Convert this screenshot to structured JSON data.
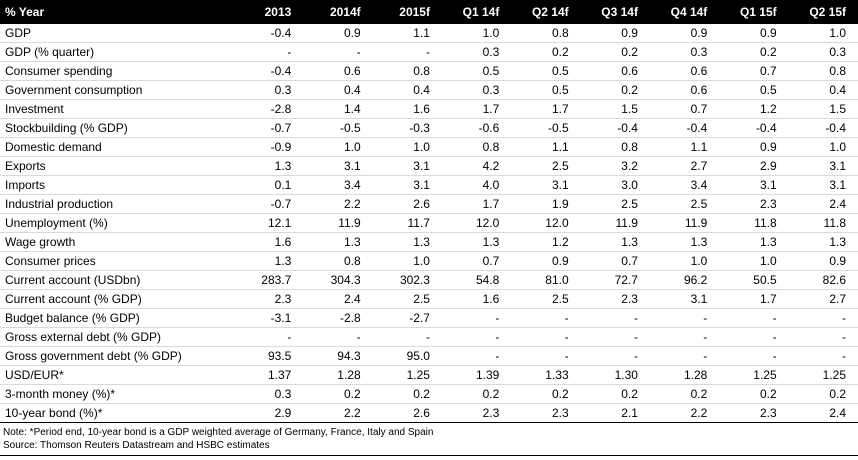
{
  "chart_data": {
    "type": "table",
    "title": "% Year",
    "columns": [
      "2013",
      "2014f",
      "2015f",
      "Q1 14f",
      "Q2 14f",
      "Q3 14f",
      "Q4 14f",
      "Q1 15f",
      "Q2 15f"
    ],
    "rows": [
      {
        "label": "GDP",
        "values": [
          "-0.4",
          "0.9",
          "1.1",
          "1.0",
          "0.8",
          "0.9",
          "0.9",
          "0.9",
          "1.0"
        ]
      },
      {
        "label": "GDP (% quarter)",
        "values": [
          "-",
          "-",
          "-",
          "0.3",
          "0.2",
          "0.2",
          "0.3",
          "0.2",
          "0.3"
        ]
      },
      {
        "label": "Consumer spending",
        "values": [
          "-0.4",
          "0.6",
          "0.8",
          "0.5",
          "0.5",
          "0.6",
          "0.6",
          "0.7",
          "0.8"
        ]
      },
      {
        "label": "Government consumption",
        "values": [
          "0.3",
          "0.4",
          "0.4",
          "0.3",
          "0.5",
          "0.2",
          "0.6",
          "0.5",
          "0.4"
        ]
      },
      {
        "label": "Investment",
        "values": [
          "-2.8",
          "1.4",
          "1.6",
          "1.7",
          "1.7",
          "1.5",
          "0.7",
          "1.2",
          "1.5"
        ]
      },
      {
        "label": "Stockbuilding (% GDP)",
        "values": [
          "-0.7",
          "-0.5",
          "-0.3",
          "-0.6",
          "-0.5",
          "-0.4",
          "-0.4",
          "-0.4",
          "-0.4"
        ]
      },
      {
        "label": "Domestic demand",
        "values": [
          "-0.9",
          "1.0",
          "1.0",
          "0.8",
          "1.1",
          "0.8",
          "1.1",
          "0.9",
          "1.0"
        ]
      },
      {
        "label": "Exports",
        "values": [
          "1.3",
          "3.1",
          "3.1",
          "4.2",
          "2.5",
          "3.2",
          "2.7",
          "2.9",
          "3.1"
        ]
      },
      {
        "label": "Imports",
        "values": [
          "0.1",
          "3.4",
          "3.1",
          "4.0",
          "3.1",
          "3.0",
          "3.4",
          "3.1",
          "3.1"
        ]
      },
      {
        "label": "Industrial production",
        "values": [
          "-0.7",
          "2.2",
          "2.6",
          "1.7",
          "1.9",
          "2.5",
          "2.5",
          "2.3",
          "2.4"
        ]
      },
      {
        "label": "Unemployment (%)",
        "values": [
          "12.1",
          "11.9",
          "11.7",
          "12.0",
          "12.0",
          "11.9",
          "11.9",
          "11.8",
          "11.8"
        ]
      },
      {
        "label": "Wage growth",
        "values": [
          "1.6",
          "1.3",
          "1.3",
          "1.3",
          "1.2",
          "1.3",
          "1.3",
          "1.3",
          "1.3"
        ]
      },
      {
        "label": "Consumer prices",
        "values": [
          "1.3",
          "0.8",
          "1.0",
          "0.7",
          "0.9",
          "0.7",
          "1.0",
          "1.0",
          "0.9"
        ]
      },
      {
        "label": "Current account (USDbn)",
        "values": [
          "283.7",
          "304.3",
          "302.3",
          "54.8",
          "81.0",
          "72.7",
          "96.2",
          "50.5",
          "82.6"
        ]
      },
      {
        "label": "Current account (% GDP)",
        "values": [
          "2.3",
          "2.4",
          "2.5",
          "1.6",
          "2.5",
          "2.3",
          "3.1",
          "1.7",
          "2.7"
        ]
      },
      {
        "label": "Budget balance (% GDP)",
        "values": [
          "-3.1",
          "-2.8",
          "-2.7",
          "-",
          "-",
          "-",
          "-",
          "-",
          "-"
        ]
      },
      {
        "label": "Gross external debt (% GDP)",
        "values": [
          "-",
          "-",
          "-",
          "-",
          "-",
          "-",
          "-",
          "-",
          "-"
        ]
      },
      {
        "label": "Gross government debt (% GDP)",
        "values": [
          "93.5",
          "94.3",
          "95.0",
          "-",
          "-",
          "-",
          "-",
          "-",
          "-"
        ]
      },
      {
        "label": "USD/EUR*",
        "values": [
          "1.37",
          "1.28",
          "1.25",
          "1.39",
          "1.33",
          "1.30",
          "1.28",
          "1.25",
          "1.25"
        ]
      },
      {
        "label": "3-month money (%)*",
        "values": [
          "0.3",
          "0.2",
          "0.2",
          "0.2",
          "0.2",
          "0.2",
          "0.2",
          "0.2",
          "0.2"
        ]
      },
      {
        "label": "10-year bond (%)*",
        "values": [
          "2.9",
          "2.2",
          "2.6",
          "2.3",
          "2.3",
          "2.1",
          "2.2",
          "2.3",
          "2.4"
        ]
      }
    ]
  },
  "footer": {
    "note": "Note: *Period end, 10-year bond is a GDP weighted average of Germany, France, Italy and Spain",
    "source": "Source: Thomson Reuters Datastream and HSBC estimates"
  },
  "colors": {
    "header_bg": "#000000",
    "header_text": "#ffffff",
    "row_divider": "#d9d9d9",
    "rule": "#000000"
  }
}
